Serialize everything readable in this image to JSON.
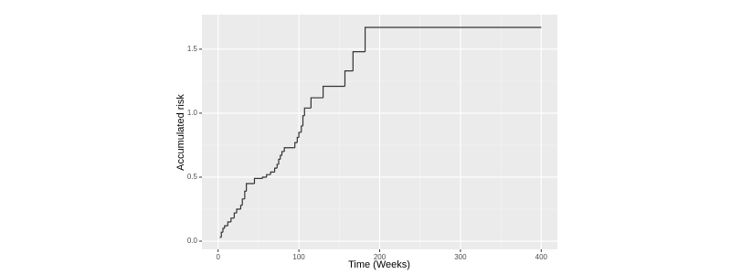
{
  "chart_data": {
    "type": "step",
    "x_label": "Time (Weeks)",
    "y_label": "Accumulated risk",
    "x": [
      2,
      4,
      6,
      8,
      12,
      16,
      20,
      23,
      28,
      30,
      33,
      35,
      45,
      55,
      60,
      65,
      70,
      73,
      75,
      77,
      79,
      82,
      95,
      98,
      100,
      103,
      105,
      107,
      115,
      130,
      157,
      167,
      182,
      400
    ],
    "values": [
      0.03,
      0.07,
      0.1,
      0.12,
      0.15,
      0.18,
      0.22,
      0.25,
      0.28,
      0.33,
      0.39,
      0.45,
      0.49,
      0.5,
      0.52,
      0.54,
      0.57,
      0.6,
      0.64,
      0.67,
      0.7,
      0.73,
      0.77,
      0.81,
      0.85,
      0.9,
      0.98,
      1.04,
      1.12,
      1.21,
      1.33,
      1.48,
      1.67,
      1.67
    ],
    "color": "#333333",
    "xlim": [
      -20,
      420
    ],
    "xticks": [
      0,
      100,
      200,
      300,
      400
    ],
    "ylim": [
      -0.064,
      1.77
    ],
    "yticks": [
      {
        "value": 0,
        "label": "0.0"
      },
      {
        "value": 0.5,
        "label": "0.5"
      },
      {
        "value": 1,
        "label": "1.0"
      },
      {
        "value": 1.5,
        "label": "1.5"
      }
    ],
    "grid": true,
    "minor_grid": true,
    "panel_color": "#ebebeb"
  }
}
